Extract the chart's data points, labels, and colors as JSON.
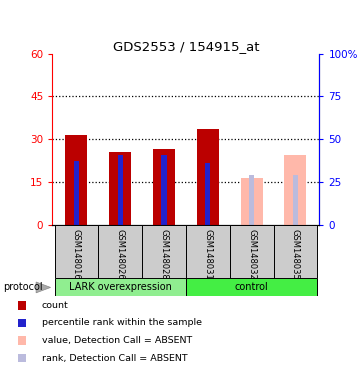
{
  "title": "GDS2553 / 154915_at",
  "samples": [
    "GSM148016",
    "GSM148026",
    "GSM148028",
    "GSM148031",
    "GSM148032",
    "GSM148035"
  ],
  "count_values": [
    31.5,
    25.5,
    26.5,
    33.5,
    16.5,
    24.5
  ],
  "percentile_values": [
    22.5,
    24.5,
    24.5,
    21.5,
    17.5,
    17.5
  ],
  "absent_flags": [
    false,
    false,
    false,
    false,
    true,
    true
  ],
  "groups": [
    {
      "label": "LARK overexpression",
      "start": 0,
      "end": 3,
      "color": "#90ee90"
    },
    {
      "label": "control",
      "start": 3,
      "end": 6,
      "color": "#44ee44"
    }
  ],
  "ylim": [
    0,
    60
  ],
  "yticks_left": [
    0,
    15,
    30,
    45,
    60
  ],
  "ytick_labels_left": [
    "0",
    "15",
    "30",
    "45",
    "60"
  ],
  "yticks_right": [
    0,
    15,
    30,
    45,
    60
  ],
  "ytick_labels_right": [
    "0",
    "25",
    "50",
    "75",
    "100%"
  ],
  "bar_width": 0.5,
  "present_bar_color": "#bb0000",
  "absent_bar_color": "#ffb8aa",
  "present_rank_color": "#2222cc",
  "absent_rank_color": "#bbbbdd",
  "rank_bar_width": 0.12,
  "group_bg_color": "#cccccc",
  "legend_items": [
    {
      "label": "count",
      "color": "#bb0000"
    },
    {
      "label": "percentile rank within the sample",
      "color": "#2222cc"
    },
    {
      "label": "value, Detection Call = ABSENT",
      "color": "#ffb8aa"
    },
    {
      "label": "rank, Detection Call = ABSENT",
      "color": "#bbbbdd"
    }
  ]
}
